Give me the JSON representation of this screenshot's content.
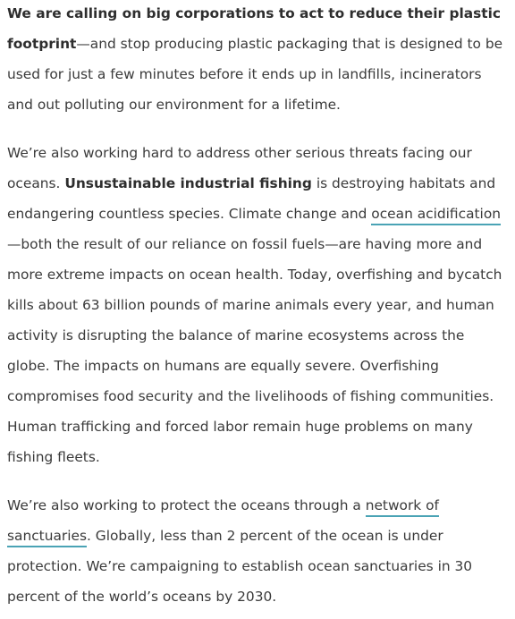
{
  "paragraphs": [
    {
      "bold": "We are calling on big corporations to act to reduce their plastic footprint",
      "text": "—and stop producing plastic packaging that is designed to be used for just a few minutes before it ends up in landfills, incinerators and out polluting our environment for a lifetime."
    },
    {
      "text_1": "We’re also working hard to address other serious threats facing our oceans. ",
      "bold": "Unsustainable industrial fishing",
      "text_2": " is destroying habitats and endangering countless species. Climate change and ",
      "link": "ocean acidification",
      "text_3": "—both the result of our reliance on fossil fuels—are having more and more extreme impacts on ocean health. Today, overfishing and bycatch kills about 63 billion pounds of marine animals every year, and human activity is disrupting the balance of marine ecosystems across the globe. The impacts on humans are equally severe. Overfishing compromises food security and the livelihoods of fishing communities. Human trafficking and forced labor remain huge problems on many fishing fleets."
    },
    {
      "text_1": "We’re also working to protect the oceans through a ",
      "link": "network of sanctuaries",
      "text_2": ". Globally, less than 2 percent of the ocean is under protection. We’re campaigning to establish ocean sanctuaries in 30 percent of the world’s oceans by 2030."
    }
  ],
  "colors": {
    "text": "#3a3a3a",
    "link_underline": "#4aa3b5",
    "background": "#ffffff"
  }
}
